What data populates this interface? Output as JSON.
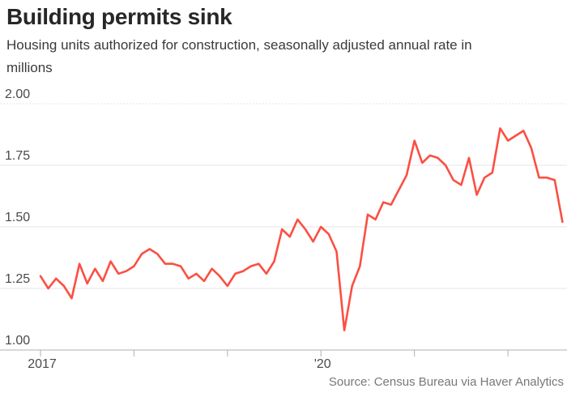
{
  "header": {
    "title": "Building permits sink",
    "subtitle_line1": "Housing units authorized for construction, seasonally adjusted annual rate in",
    "subtitle_line2": "millions"
  },
  "footer": {
    "source": "Source: Census Bureau via Haver Analytics"
  },
  "colors": {
    "line": "#fb4f42",
    "title_text": "#272727",
    "subtitle_text": "#3a3a3a",
    "tick_text": "#4a4a4a",
    "source_text": "#787878",
    "gridline": "#e4e4e4",
    "axis_line": "#b0b0b0"
  },
  "chart_data": {
    "type": "line",
    "title": "Building permits sink",
    "subtitle": "Housing units authorized for construction, seasonally adjusted annual rate in millions",
    "unit": "millions of housing units, seasonally adjusted annual rate",
    "line_color": "#fb4f42",
    "x_monthly_from": "2017-01",
    "x_monthly_to": "2022-08",
    "values": [
      1.3,
      1.25,
      1.29,
      1.26,
      1.21,
      1.35,
      1.27,
      1.33,
      1.28,
      1.36,
      1.31,
      1.32,
      1.34,
      1.39,
      1.41,
      1.39,
      1.35,
      1.35,
      1.34,
      1.29,
      1.31,
      1.28,
      1.33,
      1.3,
      1.26,
      1.31,
      1.32,
      1.34,
      1.35,
      1.31,
      1.36,
      1.49,
      1.46,
      1.53,
      1.49,
      1.44,
      1.5,
      1.47,
      1.4,
      1.08,
      1.26,
      1.34,
      1.55,
      1.53,
      1.6,
      1.59,
      1.65,
      1.71,
      1.85,
      1.76,
      1.79,
      1.78,
      1.75,
      1.69,
      1.67,
      1.78,
      1.63,
      1.7,
      1.72,
      1.9,
      1.85,
      1.87,
      1.89,
      1.82,
      1.7,
      1.7,
      1.69,
      1.52
    ],
    "ylim": [
      1.0,
      2.0
    ],
    "yticks": [
      {
        "value": 2.0,
        "label": "2.00"
      },
      {
        "value": 1.75,
        "label": "1.75"
      },
      {
        "value": 1.5,
        "label": "1.50"
      },
      {
        "value": 1.25,
        "label": "1.25"
      },
      {
        "value": 1.0,
        "label": "1.00"
      }
    ],
    "xticks": [
      {
        "year": 2017,
        "label": "2017",
        "month_index": 0
      },
      {
        "year": 2018,
        "label": "",
        "month_index": 12
      },
      {
        "year": 2019,
        "label": "",
        "month_index": 24
      },
      {
        "year": 2020,
        "label": "'20",
        "month_index": 36
      },
      {
        "year": 2021,
        "label": "",
        "month_index": 48
      },
      {
        "year": 2022,
        "label": "",
        "month_index": 60
      }
    ],
    "grid": "horizontal",
    "top_gridline_dashed": true,
    "legend": "none"
  }
}
